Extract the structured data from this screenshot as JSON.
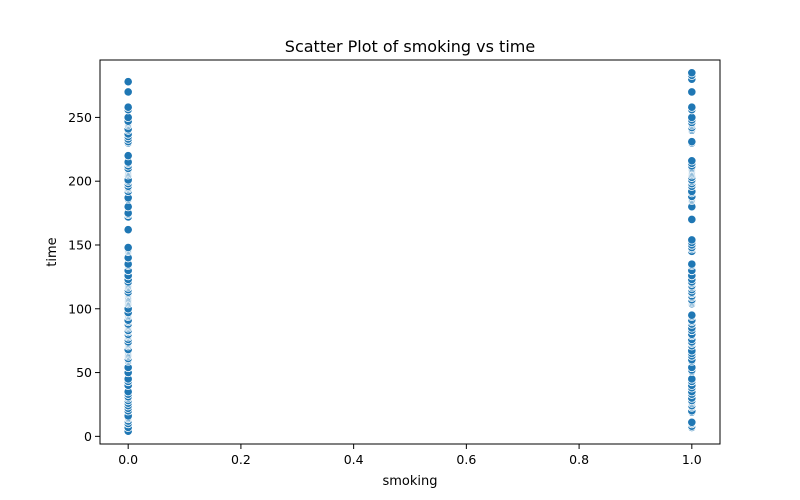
{
  "chart_data": {
    "type": "scatter",
    "title": "Scatter Plot of smoking vs time",
    "xlabel": "smoking",
    "ylabel": "time",
    "xlim": [
      -0.05,
      1.05
    ],
    "ylim": [
      -6,
      295
    ],
    "xticks": [
      0.0,
      0.2,
      0.4,
      0.6,
      0.8,
      1.0
    ],
    "xtick_labels": [
      "0.0",
      "0.2",
      "0.4",
      "0.6",
      "0.8",
      "1.0"
    ],
    "yticks": [
      0,
      50,
      100,
      150,
      200,
      250
    ],
    "ytick_labels": [
      "0",
      "50",
      "100",
      "150",
      "200",
      "250"
    ],
    "grid": false,
    "legend": "none",
    "marker_color": "#1f77b4",
    "series": [
      {
        "x": 0,
        "y": [
          4,
          7,
          10,
          12,
          14,
          15,
          16,
          20,
          22,
          24,
          26,
          28,
          30,
          31,
          33,
          35,
          40,
          43,
          45,
          50,
          54,
          59,
          60,
          61,
          63,
          64,
          65,
          66,
          67,
          68,
          71,
          72,
          73,
          74,
          76,
          78,
          79,
          80,
          82,
          83,
          85,
          86,
          87,
          88,
          90,
          91,
          94,
          95,
          96,
          97,
          100,
          104,
          105,
          106,
          107,
          108,
          109,
          110,
          111,
          112,
          113,
          115,
          117,
          118,
          119,
          120,
          121,
          123,
          126,
          130,
          134,
          135,
          140,
          145,
          146,
          147,
          148,
          162,
          172,
          174,
          175,
          180,
          186,
          187,
          192,
          194,
          195,
          196,
          198,
          200,
          201,
          205,
          206,
          207,
          208,
          209,
          210,
          212,
          214,
          215,
          220,
          230,
          231,
          233,
          235,
          237,
          240,
          241,
          244,
          245,
          246,
          247,
          250,
          256,
          258,
          270,
          278
        ]
      },
      {
        "x": 1,
        "y": [
          7,
          8,
          10,
          11,
          19,
          20,
          23,
          24,
          26,
          27,
          28,
          30,
          33,
          35,
          38,
          40,
          43,
          45,
          51,
          52,
          54,
          59,
          60,
          63,
          65,
          67,
          71,
          73,
          74,
          76,
          79,
          80,
          83,
          85,
          88,
          90,
          91,
          94,
          95,
          104,
          105,
          106,
          107,
          109,
          110,
          112,
          113,
          115,
          117,
          118,
          120,
          121,
          123,
          126,
          130,
          134,
          135,
          145,
          147,
          148,
          150,
          152,
          154,
          170,
          180,
          185,
          186,
          187,
          188,
          191,
          192,
          196,
          198,
          200,
          201,
          203,
          205,
          206,
          207,
          208,
          209,
          210,
          211,
          212,
          214,
          216,
          230,
          231,
          240,
          241,
          242,
          244,
          245,
          246,
          248,
          250,
          256,
          258,
          270,
          280,
          283,
          285
        ]
      }
    ]
  }
}
